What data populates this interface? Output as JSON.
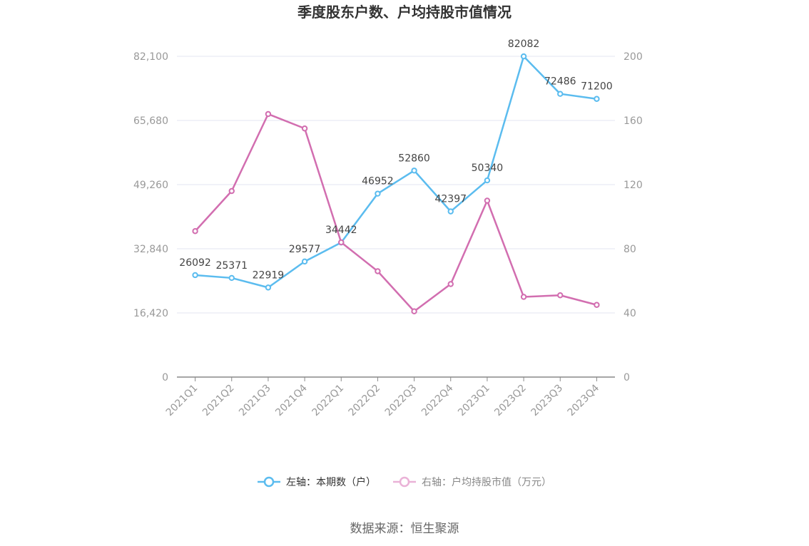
{
  "chart_data": {
    "type": "line",
    "title": "季度股东户数、户均持股市值情况",
    "categories": [
      "2021Q1",
      "2021Q2",
      "2021Q3",
      "2021Q4",
      "2022Q1",
      "2022Q2",
      "2022Q3",
      "2022Q4",
      "2023Q1",
      "2023Q2",
      "2023Q3",
      "2023Q4"
    ],
    "left_axis": {
      "ticks": [
        "0",
        "16,420",
        "32,840",
        "49,260",
        "65,680",
        "82,100"
      ],
      "tick_values": [
        0,
        16420,
        32840,
        49260,
        65680,
        82100
      ],
      "ylim": [
        0,
        82100
      ]
    },
    "right_axis": {
      "ticks": [
        "0",
        "40",
        "80",
        "120",
        "160",
        "200"
      ],
      "tick_values": [
        0,
        40,
        80,
        120,
        160,
        200
      ],
      "ylim": [
        0,
        200
      ]
    },
    "grid": true,
    "legend_position": "bottom",
    "series": [
      {
        "name": "左轴：本期数（户）",
        "axis": "left",
        "color": "#5bbcef",
        "values": [
          26092,
          25371,
          22919,
          29577,
          34442,
          46952,
          52860,
          42397,
          50340,
          82082,
          72486,
          71200
        ],
        "labels": [
          "26092",
          "25371",
          "22919",
          "29577",
          "34442",
          "46952",
          "52860",
          "42397",
          "50340",
          "82082",
          "72486",
          "71200"
        ]
      },
      {
        "name": "右轴：户均持股市值（万元）",
        "axis": "right",
        "color": "#d26eb0",
        "values": [
          91,
          116,
          164,
          155,
          84,
          66,
          41,
          58,
          110,
          50,
          51,
          45
        ]
      }
    ]
  },
  "footer": {
    "source": "数据来源：恒生聚源"
  }
}
